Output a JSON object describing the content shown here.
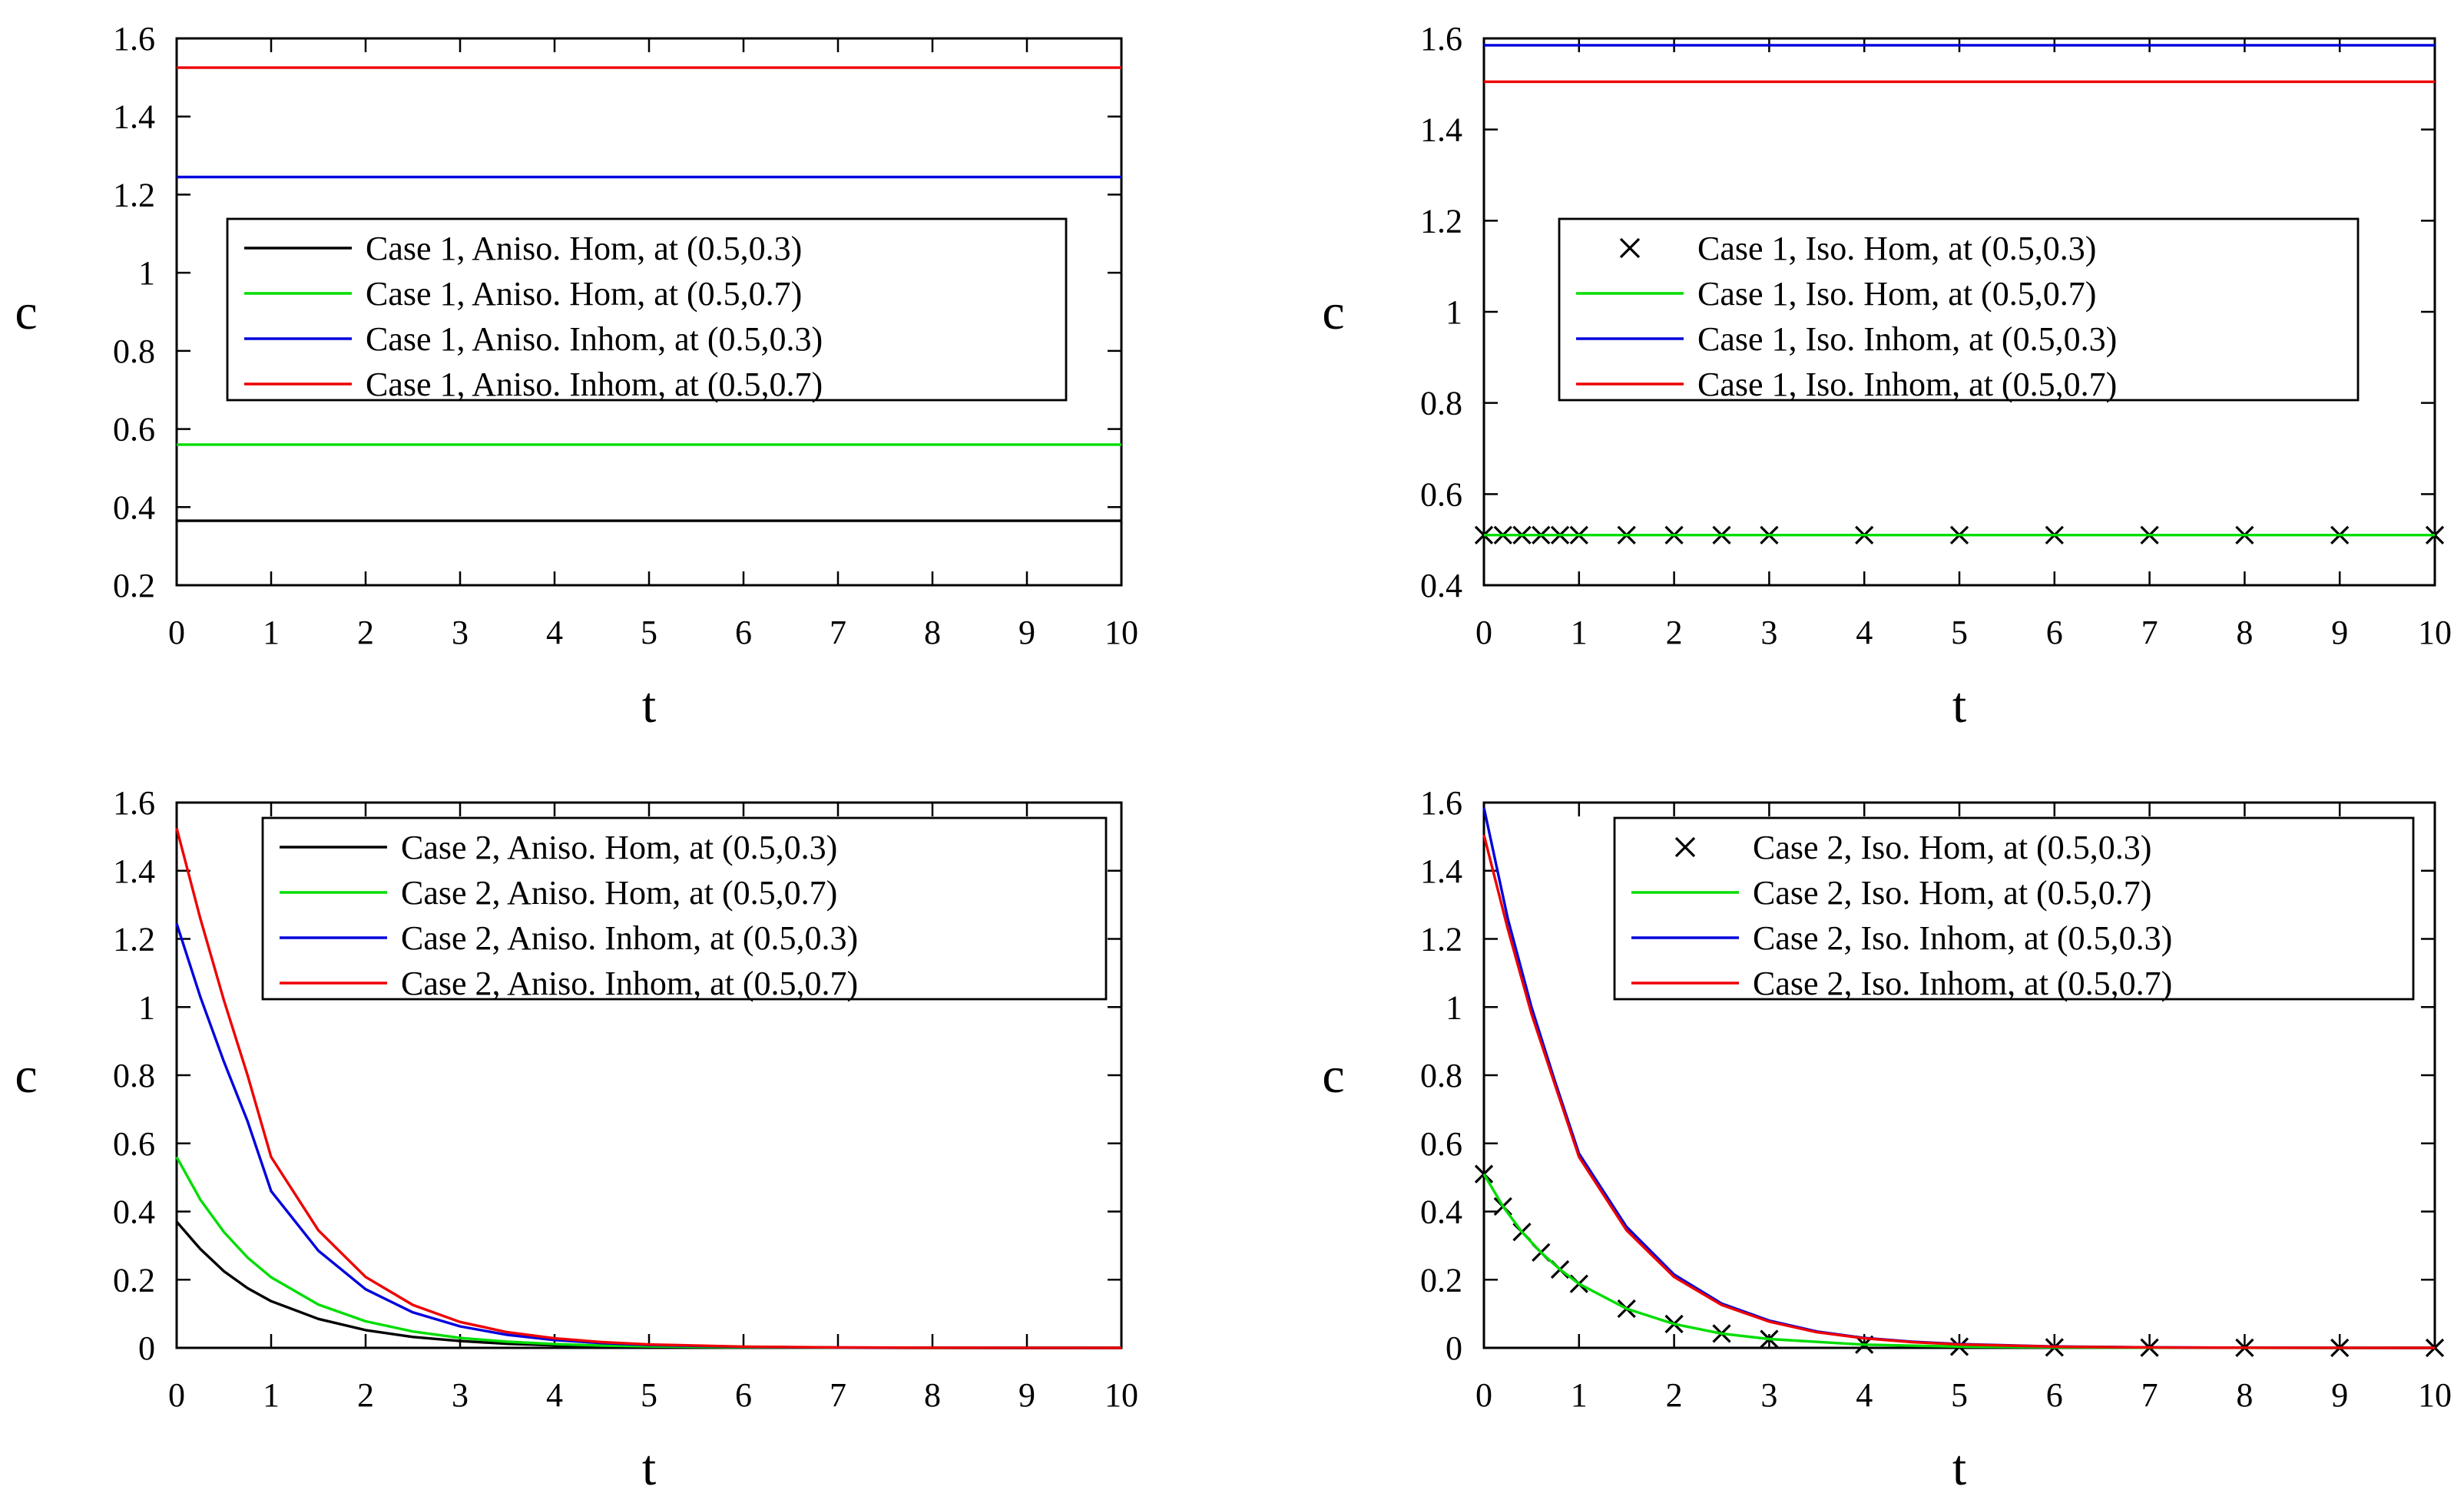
{
  "chart_data": [
    {
      "type": "line",
      "xlabel": "t",
      "ylabel": "c",
      "xlim": [
        0,
        10
      ],
      "ylim": [
        0.2,
        1.6
      ],
      "xticks": [
        0,
        1,
        2,
        3,
        4,
        5,
        6,
        7,
        8,
        9,
        10
      ],
      "yticks": [
        0.2,
        0.4,
        0.6,
        0.8,
        1,
        1.2,
        1.4,
        1.6
      ],
      "legend_position": "center",
      "series": [
        {
          "name": "Case 1, Aniso. Hom, at (0.5,0.3)",
          "color": "#000000",
          "marker": "none",
          "x": [
            0,
            10
          ],
          "values": [
            0.365,
            0.365
          ]
        },
        {
          "name": "Case 1, Aniso. Hom, at (0.5,0.7)",
          "color": "#00dd00",
          "marker": "none",
          "x": [
            0,
            10
          ],
          "values": [
            0.56,
            0.56
          ]
        },
        {
          "name": "Case 1, Aniso. Inhom, at (0.5,0.3)",
          "color": "#0000dd",
          "marker": "none",
          "x": [
            0,
            10
          ],
          "values": [
            1.245,
            1.245
          ]
        },
        {
          "name": "Case 1, Aniso. Inhom, at (0.5,0.7)",
          "color": "#ee0000",
          "marker": "none",
          "x": [
            0,
            10
          ],
          "values": [
            1.525,
            1.525
          ]
        }
      ]
    },
    {
      "type": "line",
      "xlabel": "t",
      "ylabel": "c",
      "xlim": [
        0,
        10
      ],
      "ylim": [
        0.4,
        1.6
      ],
      "xticks": [
        0,
        1,
        2,
        3,
        4,
        5,
        6,
        7,
        8,
        9,
        10
      ],
      "yticks": [
        0.4,
        0.6,
        0.8,
        1,
        1.2,
        1.4,
        1.6
      ],
      "legend_position": "center",
      "series": [
        {
          "name": "Case 1, Iso. Hom, at (0.5,0.3)",
          "color": "#000000",
          "marker": "x",
          "x": [
            0,
            0.2,
            0.4,
            0.6,
            0.8,
            1,
            1.5,
            2,
            2.5,
            3,
            4,
            5,
            6,
            7,
            8,
            9,
            10
          ],
          "values": [
            0.51,
            0.51,
            0.51,
            0.51,
            0.51,
            0.51,
            0.51,
            0.51,
            0.51,
            0.51,
            0.51,
            0.51,
            0.51,
            0.51,
            0.51,
            0.51,
            0.51
          ]
        },
        {
          "name": "Case 1, Iso. Hom, at (0.5,0.7)",
          "color": "#00dd00",
          "marker": "none",
          "x": [
            0,
            10
          ],
          "values": [
            0.51,
            0.51
          ]
        },
        {
          "name": "Case 1, Iso. Inhom, at (0.5,0.3)",
          "color": "#0000dd",
          "marker": "none",
          "x": [
            0,
            10
          ],
          "values": [
            1.585,
            1.585
          ]
        },
        {
          "name": "Case 1, Iso. Inhom, at (0.5,0.7)",
          "color": "#ee0000",
          "marker": "none",
          "x": [
            0,
            10
          ],
          "values": [
            1.505,
            1.505
          ]
        }
      ]
    },
    {
      "type": "line",
      "xlabel": "t",
      "ylabel": "c",
      "xlim": [
        0,
        10
      ],
      "ylim": [
        0,
        1.6
      ],
      "xticks": [
        0,
        1,
        2,
        3,
        4,
        5,
        6,
        7,
        8,
        9,
        10
      ],
      "yticks": [
        0,
        0.2,
        0.4,
        0.6,
        0.8,
        1,
        1.2,
        1.4,
        1.6
      ],
      "legend_position": "top-right",
      "series": [
        {
          "name": "Case 2, Aniso. Hom, at (0.5,0.3)",
          "color": "#000000",
          "marker": "none",
          "x": [
            0,
            0.25,
            0.5,
            0.75,
            1,
            1.5,
            2,
            2.5,
            3,
            3.5,
            4,
            4.5,
            5,
            6,
            7,
            8,
            9,
            10
          ],
          "values": [
            0.37,
            0.29,
            0.225,
            0.175,
            0.137,
            0.085,
            0.052,
            0.032,
            0.02,
            0.012,
            0.0075,
            0.0046,
            0.0028,
            0.001,
            0.0004,
            0.0001,
            0.0001,
            0
          ]
        },
        {
          "name": "Case 2, Aniso. Hom, at (0.5,0.7)",
          "color": "#00dd00",
          "marker": "none",
          "x": [
            0,
            0.25,
            0.5,
            0.75,
            1,
            1.5,
            2,
            2.5,
            3,
            3.5,
            4,
            4.5,
            5,
            6,
            7,
            8,
            9,
            10
          ],
          "values": [
            0.56,
            0.435,
            0.34,
            0.265,
            0.207,
            0.127,
            0.078,
            0.048,
            0.029,
            0.018,
            0.011,
            0.0068,
            0.0042,
            0.0016,
            0.0006,
            0.0002,
            0.0001,
            0
          ]
        },
        {
          "name": "Case 2, Aniso. Inhom, at (0.5,0.3)",
          "color": "#0000dd",
          "marker": "none",
          "x": [
            0,
            0.25,
            0.5,
            0.75,
            1,
            1.5,
            2,
            2.5,
            3,
            3.5,
            4,
            4.5,
            5,
            6,
            7,
            8,
            9,
            10
          ],
          "values": [
            1.245,
            1.03,
            0.84,
            0.665,
            0.46,
            0.285,
            0.172,
            0.104,
            0.063,
            0.038,
            0.023,
            0.014,
            0.0085,
            0.003,
            0.001,
            0.0004,
            0.0001,
            0
          ]
        },
        {
          "name": "Case 2, Aniso. Inhom, at (0.5,0.7)",
          "color": "#ee0000",
          "marker": "none",
          "x": [
            0,
            0.25,
            0.5,
            0.75,
            1,
            1.5,
            2,
            2.5,
            3,
            3.5,
            4,
            4.5,
            5,
            6,
            7,
            8,
            9,
            10
          ],
          "values": [
            1.525,
            1.26,
            1.02,
            0.8,
            0.56,
            0.345,
            0.208,
            0.126,
            0.076,
            0.046,
            0.028,
            0.017,
            0.01,
            0.0037,
            0.0013,
            0.0005,
            0.0002,
            0
          ]
        }
      ]
    },
    {
      "type": "line",
      "xlabel": "t",
      "ylabel": "c",
      "xlim": [
        0,
        10
      ],
      "ylim": [
        0,
        1.6
      ],
      "xticks": [
        0,
        1,
        2,
        3,
        4,
        5,
        6,
        7,
        8,
        9,
        10
      ],
      "yticks": [
        0,
        0.2,
        0.4,
        0.6,
        0.8,
        1,
        1.2,
        1.4,
        1.6
      ],
      "legend_position": "top-right",
      "series": [
        {
          "name": "Case 2, Iso. Hom, at (0.5,0.3)",
          "color": "#000000",
          "marker": "x",
          "x": [
            0,
            0.2,
            0.4,
            0.6,
            0.8,
            1,
            1.5,
            2,
            2.5,
            3,
            4,
            5,
            6,
            7,
            8,
            9,
            10
          ],
          "values": [
            0.51,
            0.415,
            0.34,
            0.28,
            0.23,
            0.188,
            0.115,
            0.07,
            0.042,
            0.026,
            0.0095,
            0.0035,
            0.0013,
            0.0005,
            0.0002,
            0.0001,
            0
          ]
        },
        {
          "name": "Case 2, Iso. Hom, at (0.5,0.7)",
          "color": "#00dd00",
          "marker": "none",
          "x": [
            0,
            0.2,
            0.4,
            0.6,
            0.8,
            1,
            1.5,
            2,
            2.5,
            3,
            4,
            5,
            6,
            7,
            8,
            9,
            10
          ],
          "values": [
            0.51,
            0.415,
            0.34,
            0.28,
            0.23,
            0.188,
            0.115,
            0.07,
            0.042,
            0.026,
            0.0095,
            0.0035,
            0.0013,
            0.0005,
            0.0002,
            0.0001,
            0
          ]
        },
        {
          "name": "Case 2, Iso. Inhom, at (0.5,0.3)",
          "color": "#0000dd",
          "marker": "none",
          "x": [
            0,
            0.25,
            0.5,
            0.75,
            1,
            1.5,
            2,
            2.5,
            3,
            3.5,
            4,
            4.5,
            5,
            6,
            7,
            8,
            9,
            10
          ],
          "values": [
            1.585,
            1.26,
            1.0,
            0.78,
            0.57,
            0.355,
            0.215,
            0.13,
            0.08,
            0.048,
            0.029,
            0.018,
            0.011,
            0.004,
            0.0015,
            0.0005,
            0.0002,
            0
          ]
        },
        {
          "name": "Case 2, Iso. Inhom, at (0.5,0.7)",
          "color": "#ee0000",
          "marker": "none",
          "x": [
            0,
            0.25,
            0.5,
            0.75,
            1,
            1.5,
            2,
            2.5,
            3,
            3.5,
            4,
            4.5,
            5,
            6,
            7,
            8,
            9,
            10
          ],
          "values": [
            1.505,
            1.23,
            0.98,
            0.77,
            0.56,
            0.345,
            0.208,
            0.126,
            0.077,
            0.046,
            0.028,
            0.017,
            0.01,
            0.0037,
            0.0013,
            0.0005,
            0.0002,
            0
          ]
        }
      ]
    }
  ]
}
